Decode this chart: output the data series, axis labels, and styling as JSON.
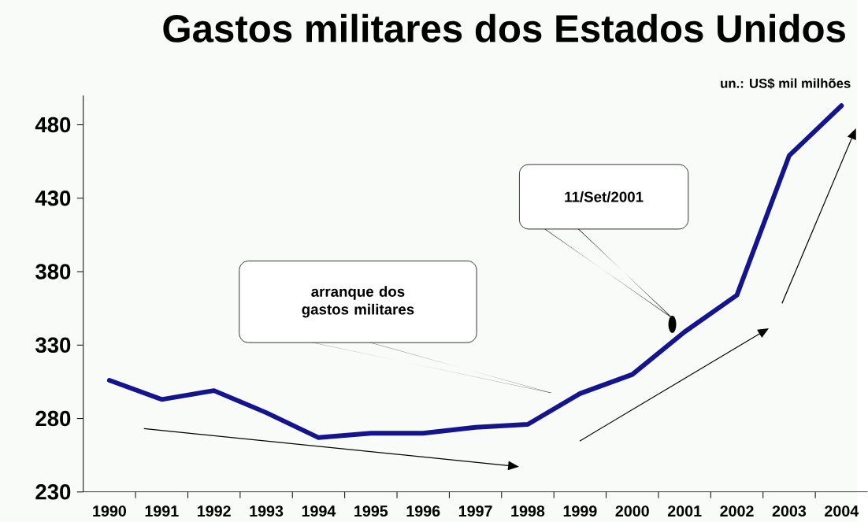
{
  "chart_data": {
    "type": "line",
    "title": "Gastos militares dos Estados Unidos",
    "subtitle": "un.: US$ mil milhões",
    "categories": [
      "1990",
      "1991",
      "1992",
      "1993",
      "1994",
      "1995",
      "1996",
      "1997",
      "1998",
      "1999",
      "2000",
      "2001",
      "2002",
      "2003",
      "2004"
    ],
    "values": [
      306,
      293,
      299,
      284,
      267,
      270,
      270,
      274,
      276,
      297,
      310,
      339,
      364,
      459,
      493
    ],
    "color": "#14148c",
    "marker": "none",
    "line_style": "solid",
    "ylim": [
      230,
      500
    ],
    "yticks": [
      230,
      280,
      330,
      380,
      430,
      480
    ],
    "annotations": [
      "arranque dos gastos militares",
      "11/Set/2001"
    ]
  }
}
